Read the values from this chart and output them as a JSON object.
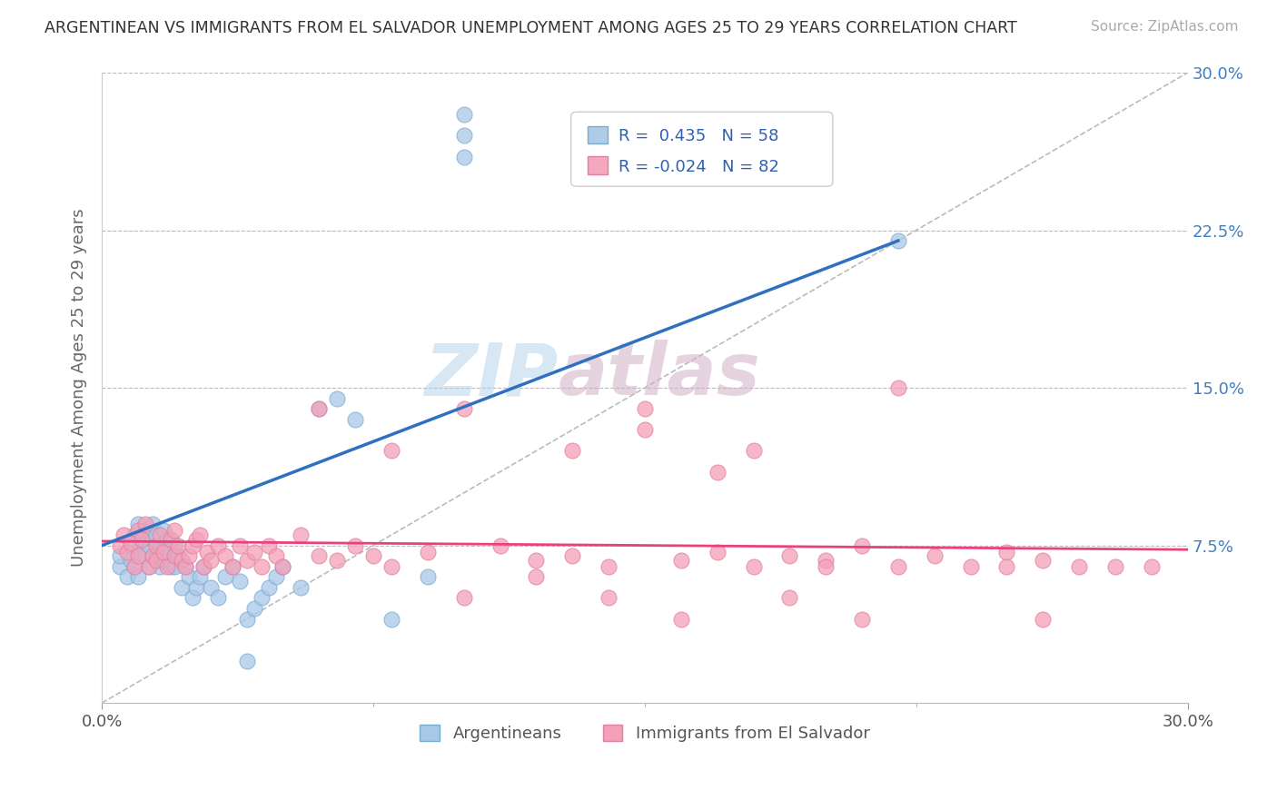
{
  "title": "ARGENTINEAN VS IMMIGRANTS FROM EL SALVADOR UNEMPLOYMENT AMONG AGES 25 TO 29 YEARS CORRELATION CHART",
  "source": "Source: ZipAtlas.com",
  "ylabel": "Unemployment Among Ages 25 to 29 years",
  "xlim": [
    0.0,
    0.3
  ],
  "ylim": [
    0.0,
    0.3
  ],
  "xticklabels": [
    "0.0%",
    "30.0%"
  ],
  "ytick_positions": [
    0.075,
    0.15,
    0.225,
    0.3
  ],
  "ytick_labels": [
    "7.5%",
    "15.0%",
    "22.5%",
    "30.0%"
  ],
  "legend_labels": [
    "Argentineans",
    "Immigrants from El Salvador"
  ],
  "R_arg": 0.435,
  "N_arg": 58,
  "R_sal": -0.024,
  "N_sal": 82,
  "color_arg": "#a8c8e8",
  "color_sal": "#f4a0b8",
  "color_arg_line": "#3070c0",
  "color_sal_line": "#e84080",
  "color_diagonal": "#aaaaaa",
  "watermark_zip": "ZIP",
  "watermark_atlas": "atlas",
  "arg_x": [
    0.005,
    0.005,
    0.007,
    0.008,
    0.008,
    0.009,
    0.009,
    0.01,
    0.01,
    0.01,
    0.011,
    0.012,
    0.012,
    0.013,
    0.013,
    0.014,
    0.014,
    0.015,
    0.015,
    0.016,
    0.016,
    0.017,
    0.017,
    0.018,
    0.018,
    0.019,
    0.02,
    0.02,
    0.021,
    0.022,
    0.023,
    0.024,
    0.025,
    0.026,
    0.027,
    0.028,
    0.03,
    0.032,
    0.034,
    0.036,
    0.038,
    0.04,
    0.042,
    0.044,
    0.046,
    0.048,
    0.05,
    0.055,
    0.06,
    0.065,
    0.07,
    0.08,
    0.09,
    0.1,
    0.1,
    0.1,
    0.22,
    0.04
  ],
  "arg_y": [
    0.065,
    0.07,
    0.06,
    0.075,
    0.068,
    0.08,
    0.065,
    0.085,
    0.072,
    0.06,
    0.078,
    0.082,
    0.07,
    0.075,
    0.065,
    0.078,
    0.085,
    0.08,
    0.07,
    0.065,
    0.075,
    0.068,
    0.082,
    0.072,
    0.078,
    0.065,
    0.075,
    0.065,
    0.07,
    0.055,
    0.065,
    0.06,
    0.05,
    0.055,
    0.06,
    0.065,
    0.055,
    0.05,
    0.06,
    0.065,
    0.058,
    0.04,
    0.045,
    0.05,
    0.055,
    0.06,
    0.065,
    0.055,
    0.14,
    0.145,
    0.135,
    0.04,
    0.06,
    0.27,
    0.26,
    0.28,
    0.22,
    0.02
  ],
  "sal_x": [
    0.005,
    0.006,
    0.007,
    0.008,
    0.009,
    0.01,
    0.01,
    0.011,
    0.012,
    0.013,
    0.014,
    0.015,
    0.015,
    0.016,
    0.017,
    0.018,
    0.019,
    0.02,
    0.02,
    0.021,
    0.022,
    0.023,
    0.024,
    0.025,
    0.026,
    0.027,
    0.028,
    0.029,
    0.03,
    0.032,
    0.034,
    0.036,
    0.038,
    0.04,
    0.042,
    0.044,
    0.046,
    0.048,
    0.05,
    0.055,
    0.06,
    0.065,
    0.07,
    0.075,
    0.08,
    0.09,
    0.1,
    0.11,
    0.12,
    0.13,
    0.14,
    0.15,
    0.16,
    0.17,
    0.18,
    0.19,
    0.2,
    0.21,
    0.22,
    0.23,
    0.24,
    0.25,
    0.26,
    0.27,
    0.13,
    0.18,
    0.22,
    0.15,
    0.2,
    0.25,
    0.28,
    0.29,
    0.17,
    0.12,
    0.08,
    0.06,
    0.16,
    0.21,
    0.26,
    0.1,
    0.14,
    0.19
  ],
  "sal_y": [
    0.075,
    0.08,
    0.072,
    0.076,
    0.065,
    0.082,
    0.07,
    0.078,
    0.085,
    0.065,
    0.07,
    0.075,
    0.068,
    0.08,
    0.072,
    0.065,
    0.078,
    0.082,
    0.07,
    0.075,
    0.068,
    0.065,
    0.07,
    0.075,
    0.078,
    0.08,
    0.065,
    0.072,
    0.068,
    0.075,
    0.07,
    0.065,
    0.075,
    0.068,
    0.072,
    0.065,
    0.075,
    0.07,
    0.065,
    0.08,
    0.14,
    0.068,
    0.075,
    0.07,
    0.065,
    0.072,
    0.14,
    0.075,
    0.068,
    0.07,
    0.065,
    0.14,
    0.068,
    0.072,
    0.065,
    0.07,
    0.068,
    0.075,
    0.065,
    0.07,
    0.065,
    0.072,
    0.068,
    0.065,
    0.12,
    0.12,
    0.15,
    0.13,
    0.065,
    0.065,
    0.065,
    0.065,
    0.11,
    0.06,
    0.12,
    0.07,
    0.04,
    0.04,
    0.04,
    0.05,
    0.05,
    0.05
  ]
}
